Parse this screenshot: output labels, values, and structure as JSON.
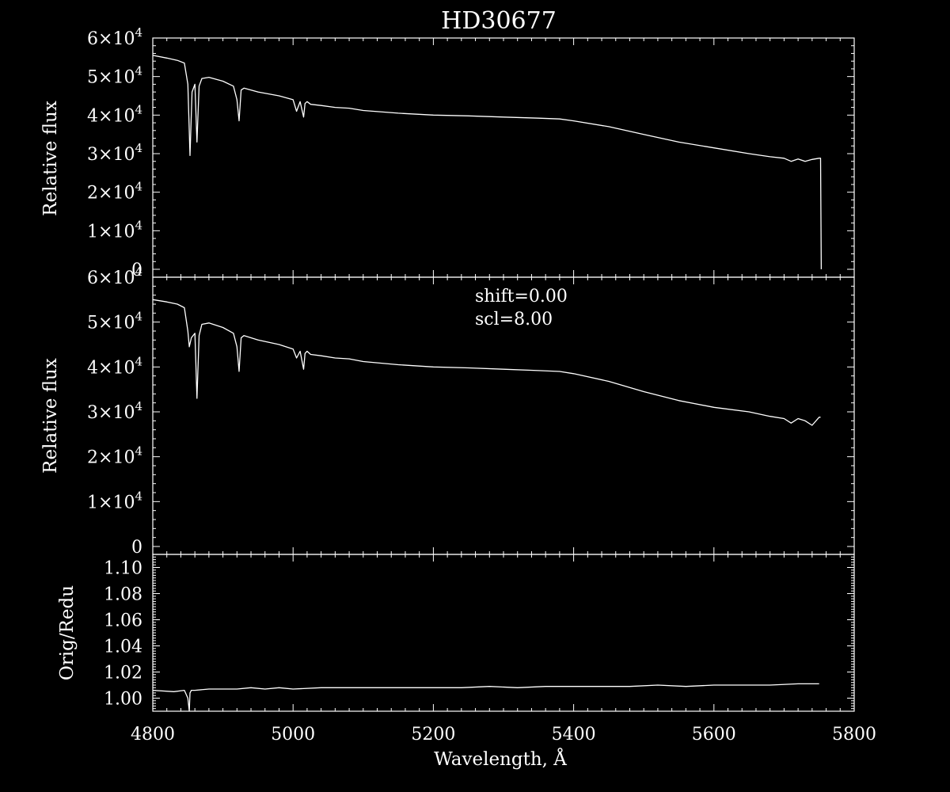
{
  "colors": {
    "background": "#000000",
    "foreground": "#ffffff"
  },
  "title": "HD30677",
  "chart_data": [
    {
      "type": "line",
      "panel": "top",
      "ylabel": "Relative flux",
      "xlim": [
        4800,
        5800
      ],
      "ylim": [
        0,
        60000
      ],
      "yticks": [
        {
          "value": 0,
          "mant": "0",
          "exp": ""
        },
        {
          "value": 10000,
          "mant": "1×10",
          "exp": "4"
        },
        {
          "value": 20000,
          "mant": "2×10",
          "exp": "4"
        },
        {
          "value": 30000,
          "mant": "3×10",
          "exp": "4"
        },
        {
          "value": 40000,
          "mant": "4×10",
          "exp": "4"
        },
        {
          "value": 50000,
          "mant": "5×10",
          "exp": "4"
        },
        {
          "value": 60000,
          "mant": "6×10",
          "exp": "4"
        }
      ],
      "series": [
        {
          "x": [
            4800,
            4820,
            4835,
            4845,
            4850,
            4853,
            4856,
            4860,
            4863,
            4866,
            4870,
            4880,
            4900,
            4915,
            4920,
            4923,
            4926,
            4930,
            4950,
            4980,
            5000,
            5005,
            5010,
            5015,
            5017,
            5020,
            5025,
            5040,
            5060,
            5080,
            5100,
            5150,
            5200,
            5250,
            5300,
            5350,
            5380,
            5400,
            5450,
            5500,
            5550,
            5600,
            5650,
            5680,
            5700,
            5710,
            5720,
            5730,
            5740,
            5750,
            5752,
            5753
          ],
          "y": [
            55500,
            54800,
            54200,
            53500,
            48000,
            29500,
            46000,
            48000,
            33000,
            47500,
            49500,
            49800,
            48800,
            47500,
            44000,
            38500,
            46500,
            47000,
            46000,
            45000,
            44000,
            41000,
            43500,
            39500,
            43000,
            43500,
            42800,
            42500,
            42000,
            41800,
            41200,
            40500,
            40000,
            39800,
            39500,
            39200,
            39000,
            38500,
            37000,
            35000,
            33000,
            31500,
            30000,
            29200,
            28800,
            28000,
            28600,
            28000,
            28500,
            28800,
            28800,
            0
          ]
        }
      ]
    },
    {
      "type": "line",
      "panel": "middle",
      "ylabel": "Relative flux",
      "xlim": [
        4800,
        5800
      ],
      "ylim": [
        0,
        60000
      ],
      "annotations": [
        "shift=0.00",
        "scl=8.00"
      ],
      "yticks": [
        {
          "value": 0,
          "mant": "0",
          "exp": ""
        },
        {
          "value": 10000,
          "mant": "1×10",
          "exp": "4"
        },
        {
          "value": 20000,
          "mant": "2×10",
          "exp": "4"
        },
        {
          "value": 30000,
          "mant": "3×10",
          "exp": "4"
        },
        {
          "value": 40000,
          "mant": "4×10",
          "exp": "4"
        },
        {
          "value": 50000,
          "mant": "5×10",
          "exp": "4"
        },
        {
          "value": 60000,
          "mant": "6×10",
          "exp": "4"
        }
      ],
      "series": [
        {
          "x": [
            4800,
            4820,
            4835,
            4845,
            4850,
            4852,
            4855,
            4860,
            4863,
            4866,
            4870,
            4880,
            4900,
            4915,
            4920,
            4923,
            4926,
            4930,
            4950,
            4980,
            5000,
            5005,
            5010,
            5015,
            5017,
            5020,
            5025,
            5040,
            5060,
            5080,
            5100,
            5150,
            5200,
            5250,
            5300,
            5350,
            5380,
            5400,
            5450,
            5500,
            5550,
            5600,
            5650,
            5680,
            5700,
            5710,
            5720,
            5730,
            5740,
            5750,
            5752
          ],
          "y": [
            55000,
            54500,
            54000,
            53200,
            48000,
            44500,
            46500,
            47500,
            33000,
            47000,
            49500,
            49800,
            48800,
            47500,
            44500,
            39000,
            46500,
            47000,
            46000,
            45000,
            44000,
            42000,
            43500,
            39500,
            43000,
            43500,
            42800,
            42500,
            42000,
            41800,
            41200,
            40500,
            40000,
            39800,
            39500,
            39200,
            39000,
            38500,
            36800,
            34500,
            32500,
            31000,
            30000,
            29000,
            28500,
            27500,
            28500,
            28000,
            27000,
            28800,
            28800
          ]
        }
      ]
    },
    {
      "type": "line",
      "panel": "bottom",
      "ylabel": "Orig/Redu",
      "xlabel": "Wavelength, Å",
      "xlim": [
        4800,
        5800
      ],
      "ylim": [
        0.99,
        1.11
      ],
      "xticks": [
        "4800",
        "5000",
        "5200",
        "5400",
        "5600",
        "5800"
      ],
      "yticks": [
        "1.00",
        "1.02",
        "1.04",
        "1.06",
        "1.08",
        "1.10"
      ],
      "series": [
        {
          "x": [
            4800,
            4830,
            4845,
            4850,
            4852,
            4853,
            4855,
            4860,
            4880,
            4900,
            4920,
            4940,
            4960,
            4980,
            5000,
            5040,
            5080,
            5120,
            5160,
            5200,
            5240,
            5280,
            5320,
            5360,
            5400,
            5440,
            5480,
            5520,
            5560,
            5600,
            5640,
            5680,
            5720,
            5750
          ],
          "y": [
            1.006,
            1.005,
            1.006,
            1.0,
            0.99,
            1.004,
            1.006,
            1.006,
            1.007,
            1.007,
            1.007,
            1.008,
            1.007,
            1.008,
            1.007,
            1.008,
            1.008,
            1.008,
            1.008,
            1.008,
            1.008,
            1.009,
            1.008,
            1.009,
            1.009,
            1.009,
            1.009,
            1.01,
            1.009,
            1.01,
            1.01,
            1.01,
            1.011,
            1.011
          ]
        }
      ]
    }
  ]
}
